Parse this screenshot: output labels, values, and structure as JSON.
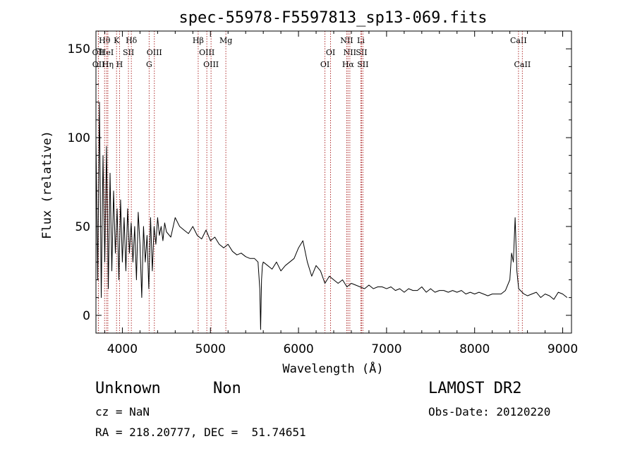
{
  "chart_data": {
    "type": "line",
    "title": "spec-55978-F5597813_sp13-069.fits",
    "xlabel": "Wavelength (Å)",
    "ylabel": "Flux (relative)",
    "xlim": [
      3700,
      9100
    ],
    "ylim": [
      -10,
      160
    ],
    "xticks": [
      4000,
      5000,
      6000,
      7000,
      8000,
      9000
    ],
    "yticks": [
      0,
      50,
      100,
      150
    ],
    "grid": false,
    "series": [
      {
        "color": "#000000",
        "x": [
          3700,
          3720,
          3740,
          3760,
          3780,
          3800,
          3820,
          3840,
          3860,
          3880,
          3900,
          3920,
          3940,
          3960,
          3980,
          4000,
          4020,
          4040,
          4060,
          4080,
          4100,
          4120,
          4140,
          4160,
          4180,
          4200,
          4220,
          4240,
          4260,
          4280,
          4300,
          4320,
          4340,
          4360,
          4380,
          4400,
          4420,
          4440,
          4460,
          4480,
          4500,
          4550,
          4600,
          4650,
          4700,
          4750,
          4800,
          4850,
          4900,
          4950,
          5000,
          5050,
          5100,
          5150,
          5200,
          5250,
          5300,
          5350,
          5400,
          5450,
          5500,
          5540,
          5560,
          5570,
          5580,
          5590,
          5600,
          5650,
          5700,
          5750,
          5800,
          5850,
          5900,
          5950,
          6000,
          6050,
          6100,
          6150,
          6200,
          6250,
          6300,
          6350,
          6400,
          6450,
          6500,
          6550,
          6600,
          6650,
          6700,
          6750,
          6800,
          6850,
          6900,
          6950,
          7000,
          7050,
          7100,
          7150,
          7200,
          7250,
          7300,
          7350,
          7400,
          7450,
          7500,
          7550,
          7600,
          7650,
          7700,
          7750,
          7800,
          7850,
          7900,
          7950,
          8000,
          8050,
          8100,
          8150,
          8200,
          8250,
          8300,
          8350,
          8400,
          8420,
          8440,
          8460,
          8480,
          8500,
          8520,
          8540,
          8560,
          8600,
          8650,
          8700,
          8750,
          8800,
          8850,
          8900,
          8950,
          9000,
          9050
        ],
        "y": [
          100,
          20,
          120,
          10,
          90,
          30,
          95,
          15,
          80,
          25,
          70,
          35,
          60,
          20,
          65,
          30,
          55,
          25,
          60,
          35,
          52,
          30,
          50,
          20,
          58,
          40,
          10,
          50,
          30,
          45,
          15,
          55,
          25,
          50,
          40,
          55,
          45,
          50,
          42,
          52,
          47,
          44,
          55,
          50,
          48,
          46,
          50,
          45,
          43,
          48,
          42,
          44,
          40,
          38,
          40,
          36,
          34,
          35,
          33,
          32,
          32,
          30,
          15,
          -8,
          20,
          28,
          30,
          28,
          26,
          30,
          25,
          28,
          30,
          32,
          38,
          42,
          30,
          22,
          28,
          25,
          18,
          22,
          20,
          18,
          20,
          16,
          18,
          17,
          16,
          15,
          17,
          15,
          16,
          16,
          15,
          16,
          14,
          15,
          13,
          15,
          14,
          14,
          16,
          13,
          15,
          13,
          14,
          14,
          13,
          14,
          13,
          14,
          12,
          13,
          12,
          13,
          12,
          11,
          12,
          12,
          12,
          14,
          20,
          35,
          30,
          55,
          25,
          15,
          14,
          13,
          12,
          11,
          12,
          13,
          10,
          12,
          11,
          9,
          13,
          12,
          10
        ]
      }
    ],
    "lines": [
      {
        "label": "Hθ",
        "x": 3798,
        "row": 0
      },
      {
        "label": "OII",
        "x": 3727,
        "row": 1
      },
      {
        "label": "OII",
        "x": 3729,
        "row": 2
      },
      {
        "label": "HeI",
        "x": 3820,
        "row": 1
      },
      {
        "label": "Hη",
        "x": 3835,
        "row": 2
      },
      {
        "label": "K",
        "x": 3934,
        "row": 0
      },
      {
        "label": "SII",
        "x": 4069,
        "row": 1
      },
      {
        "label": "H",
        "x": 3968,
        "row": 2
      },
      {
        "label": "Hδ",
        "x": 4102,
        "row": 0
      },
      {
        "label": "OIII",
        "x": 4363,
        "row": 1
      },
      {
        "label": "G",
        "x": 4304,
        "row": 2
      },
      {
        "label": "Hβ",
        "x": 4861,
        "row": 0
      },
      {
        "label": "OIII",
        "x": 4959,
        "row": 1
      },
      {
        "label": "OIII",
        "x": 5007,
        "row": 2
      },
      {
        "label": "Mg",
        "x": 5175,
        "row": 0
      },
      {
        "label": "OI",
        "x": 6364,
        "row": 1
      },
      {
        "label": "OI",
        "x": 6300,
        "row": 2
      },
      {
        "label": "NII",
        "x": 6548,
        "row": 0
      },
      {
        "label": "NII",
        "x": 6583,
        "row": 1
      },
      {
        "label": "Hα",
        "x": 6563,
        "row": 2
      },
      {
        "label": "Li",
        "x": 6708,
        "row": 0
      },
      {
        "label": "SII",
        "x": 6716,
        "row": 1
      },
      {
        "label": "SII",
        "x": 6731,
        "row": 2
      },
      {
        "label": "CaII",
        "x": 8498,
        "row": 0
      },
      {
        "label": "CaII",
        "x": 8542,
        "row": 2
      }
    ]
  },
  "info": {
    "class": "Unknown",
    "subclass": "Non",
    "survey": "LAMOST DR2",
    "cz": "cz = NaN",
    "obs_date": "Obs-Date: 20120220",
    "coords": "RA = 218.20777, DEC =  51.74651"
  }
}
